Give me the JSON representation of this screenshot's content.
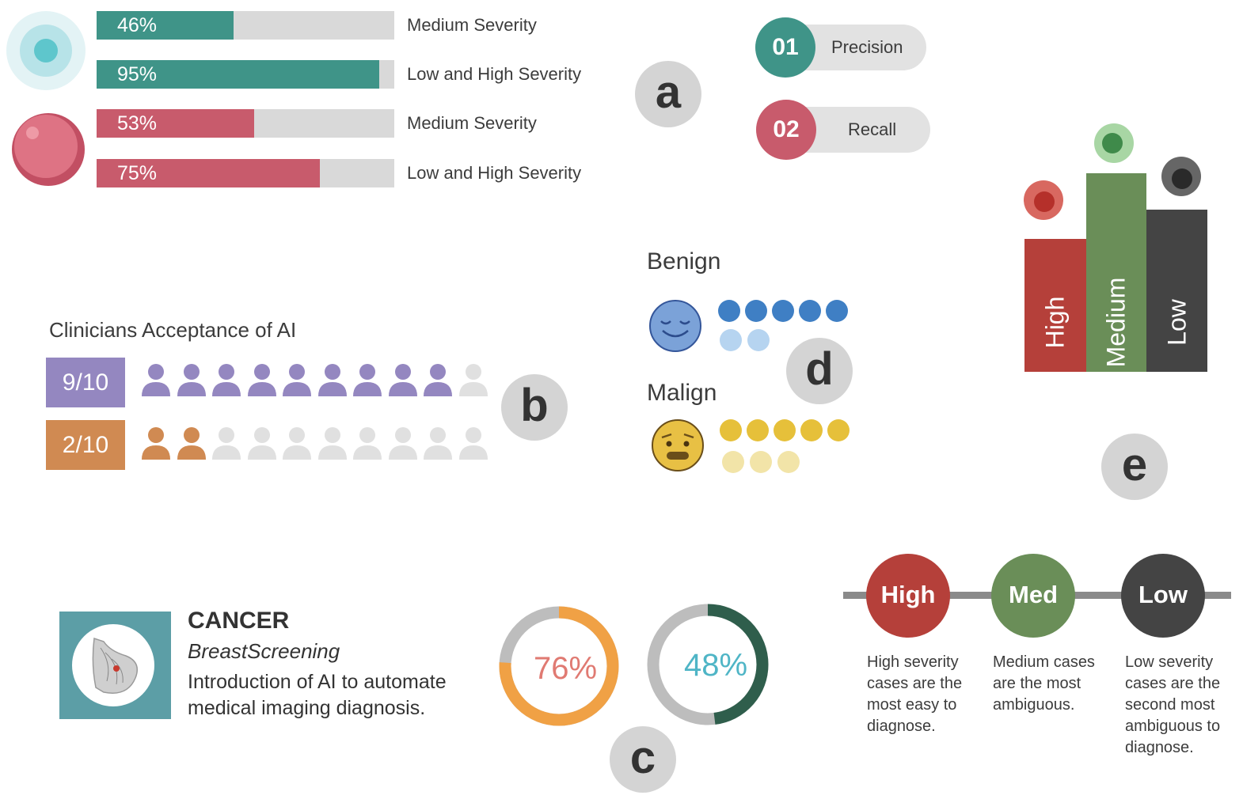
{
  "colors": {
    "teal": "#3f9488",
    "pink": "#c85b6c",
    "gray_track": "#d9d9d9",
    "purple": "#9487c0",
    "orange": "#d08a52",
    "blue": "#3f7fc4",
    "light_blue": "#b6d4f0",
    "yellow": "#e6c03a",
    "light_yellow": "#f2e4a8",
    "red": "#b5403a",
    "green": "#6a8e58",
    "dark": "#444444"
  },
  "severity_bars": [
    {
      "percent": 46,
      "label_pct": "46%",
      "label": "Medium Severity",
      "color": "teal"
    },
    {
      "percent": 95,
      "label_pct": "95%",
      "label": "Low and High Severity",
      "color": "teal"
    },
    {
      "percent": 53,
      "label_pct": "53%",
      "label": "Medium Severity",
      "color": "pink"
    },
    {
      "percent": 75,
      "label_pct": "75%",
      "label": "Low and High Severity",
      "color": "pink"
    }
  ],
  "section_letters": {
    "a": "a",
    "b": "b",
    "c": "c",
    "d": "d",
    "e": "e"
  },
  "metrics": [
    {
      "num": "01",
      "label": "Precision",
      "color": "teal"
    },
    {
      "num": "02",
      "label": "Recall",
      "color": "pink"
    }
  ],
  "acceptance": {
    "title": "Clinicians Acceptance of AI",
    "rows": [
      {
        "score": "9/10",
        "filled": 9,
        "total": 10,
        "color": "purple"
      },
      {
        "score": "2/10",
        "filled": 2,
        "total": 10,
        "color": "orange"
      }
    ]
  },
  "cancer": {
    "title": "CANCER",
    "subtitle": "BreastScreening",
    "description": "Introduction of AI to automate medical imaging diagnosis."
  },
  "donuts": [
    {
      "value": 76,
      "label": "76%",
      "color": "#f0a145",
      "text_color": "#e07a72"
    },
    {
      "value": 48,
      "label": "48%",
      "color": "#2f5e4c",
      "text_color": "#4fb5c6"
    }
  ],
  "classes": {
    "benign": {
      "label": "Benign",
      "dark_dots": 5,
      "light_dots": 2
    },
    "malign": {
      "label": "Malign",
      "dark_dots": 5,
      "light_dots": 3
    }
  },
  "severity_levels": [
    {
      "name": "High",
      "short": "High",
      "color": "red",
      "description": "High severity cases are the most easy to diagnose."
    },
    {
      "name": "Medium",
      "short": "Med",
      "color": "green",
      "description": "Medium cases are the most ambiguous."
    },
    {
      "name": "Low",
      "short": "Low",
      "color": "dark",
      "description": "Low severity cases are the second most ambiguous to diagnose."
    }
  ]
}
